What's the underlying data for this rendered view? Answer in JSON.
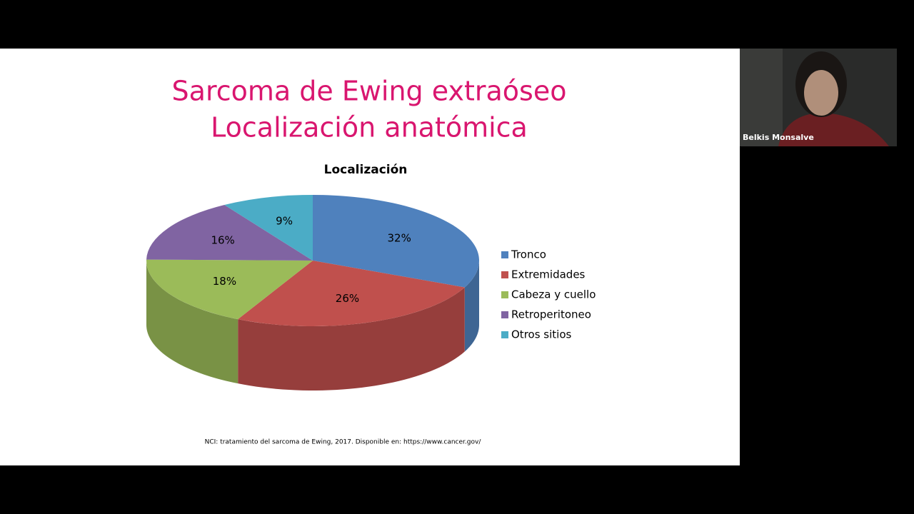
{
  "slide": {
    "title_lines": [
      "Sarcoma de Ewing extraóseo",
      "Localización anatómica"
    ],
    "citation": "NCI: tratamiento del sarcoma de Ewing, 2017. Disponible en: https://www.cancer.gov/"
  },
  "chart_data": {
    "type": "pie",
    "title": "Localización",
    "categories": [
      "Tronco",
      "Extremidades",
      "Cabeza y cuello",
      "Retroperitoneo",
      "Otros sitios"
    ],
    "values": [
      32,
      26,
      18,
      16,
      9
    ],
    "value_labels": [
      "32%",
      "26%",
      "18%",
      "16%",
      "9%"
    ],
    "colors": [
      "#4f81bd",
      "#c0504d",
      "#9bbb59",
      "#8064a2",
      "#4bacc6"
    ],
    "legend": "right"
  },
  "participant": {
    "name": "Belkis Monsalve"
  }
}
